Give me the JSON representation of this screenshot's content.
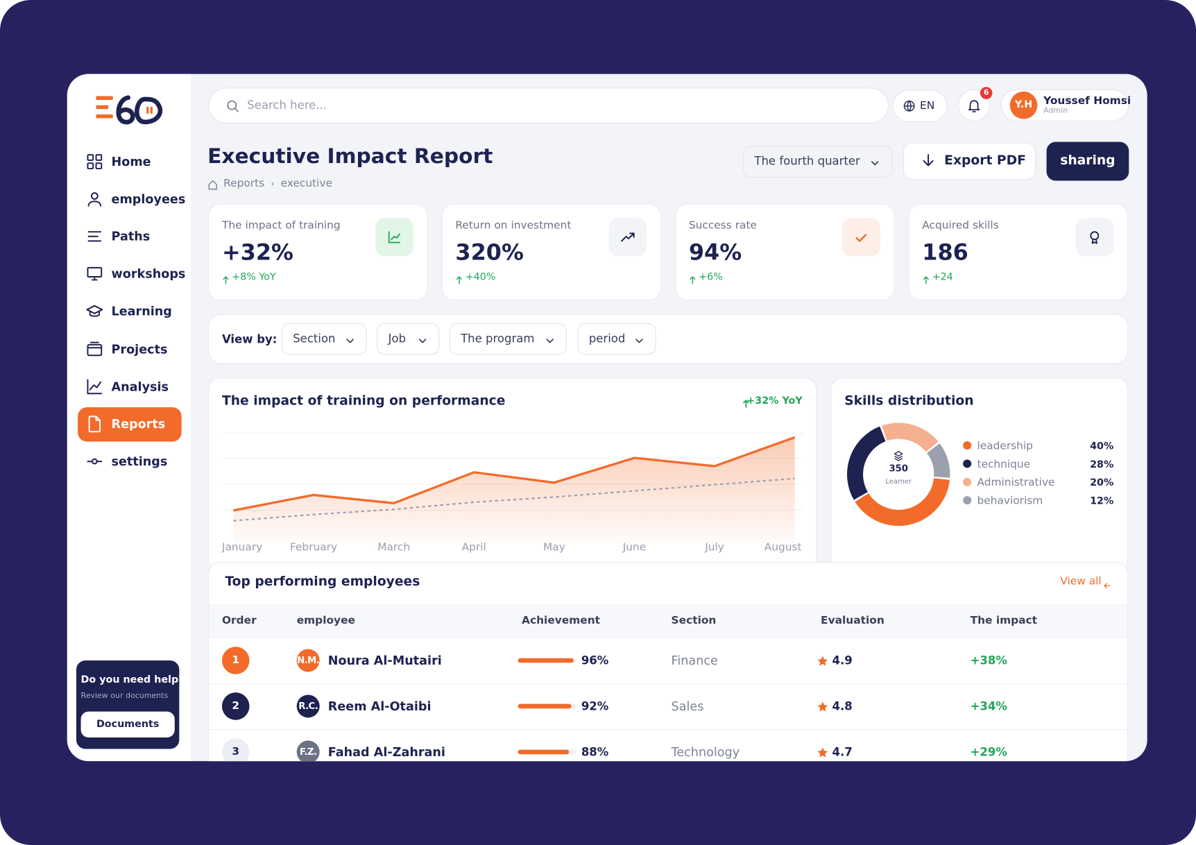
{
  "sidebar": {
    "nav": [
      {
        "label": "Home"
      },
      {
        "label": "employees"
      },
      {
        "label": "Paths"
      },
      {
        "label": "workshops"
      },
      {
        "label": "Learning"
      },
      {
        "label": "Projects"
      },
      {
        "label": "Analysis"
      },
      {
        "label": "Reports",
        "active": true
      },
      {
        "label": "settings"
      }
    ],
    "help": {
      "title": "Do you need help?",
      "subtitle": "Review our documents",
      "button": "Documents"
    }
  },
  "header": {
    "search_placeholder": "Search here...",
    "language": "EN",
    "notifications": 6,
    "user": {
      "initials": "Y.H",
      "name": "Youssef Homsi",
      "role": "Admin"
    }
  },
  "page": {
    "title": "Executive Impact Report",
    "breadcrumb": [
      "Reports",
      "executive"
    ],
    "period": "The fourth quarter",
    "export": "Export PDF",
    "share": "sharing"
  },
  "kpis": [
    {
      "label": "The impact of training",
      "value": "+32%",
      "change": "+8% YoY"
    },
    {
      "label": "Return on investment",
      "value": "320%",
      "change": "+40%"
    },
    {
      "label": "Success rate",
      "value": "94%",
      "change": "+6%"
    },
    {
      "label": "Acquired skills",
      "value": "186",
      "change": "+24"
    }
  ],
  "filters": {
    "label": "View by:",
    "options": [
      "Section",
      "Job",
      "The program",
      "period"
    ]
  },
  "chart_data": [
    {
      "type": "line",
      "title": "The impact of training on performance",
      "annotation": "+32% YoY",
      "categories": [
        "January",
        "February",
        "March",
        "April",
        "May",
        "June",
        "July",
        "August"
      ],
      "series": [
        {
          "color": "#f26b2a",
          "values": [
            25,
            40,
            32,
            62,
            52,
            76,
            68,
            96
          ]
        },
        {
          "color": "#9ca0b0",
          "values": [
            15,
            21,
            26,
            33,
            38,
            44,
            50,
            56
          ]
        }
      ],
      "ylim": [
        0,
        100
      ]
    },
    {
      "type": "pie",
      "title": "Skills distribution",
      "categories": [
        "leadership",
        "technique",
        "Administrative",
        "behaviorism"
      ],
      "values": [
        40,
        28,
        20,
        12
      ],
      "value_labels": [
        "40%",
        "28%",
        "20%",
        "12%"
      ],
      "colors": [
        "#f26b2a",
        "#1e2251",
        "#f5b08f",
        "#9ca0ae"
      ],
      "center_value": 350,
      "center_label": "Learner"
    }
  ],
  "table": {
    "title": "Top performing employees",
    "link": "View all",
    "columns": [
      "Order",
      "employee",
      "Achievement",
      "Section",
      "Evaluation",
      "The impact"
    ],
    "rows": [
      {
        "order": 1,
        "initials": "N.M.",
        "name": "Noura Al-Mutairi",
        "achievement": 96,
        "achievement_label": "96%",
        "section": "Finance",
        "evaluation": 4.9,
        "impact": "+38%"
      },
      {
        "order": 2,
        "initials": "R.C.",
        "name": "Reem Al-Otaibi",
        "achievement": 92,
        "achievement_label": "92%",
        "section": "Sales",
        "evaluation": 4.8,
        "impact": "+34%"
      },
      {
        "order": 3,
        "initials": "F.Z.",
        "name": "Fahad Al-Zahrani",
        "achievement": 88,
        "achievement_label": "88%",
        "section": "Technology",
        "evaluation": 4.7,
        "impact": "+29%"
      }
    ]
  }
}
